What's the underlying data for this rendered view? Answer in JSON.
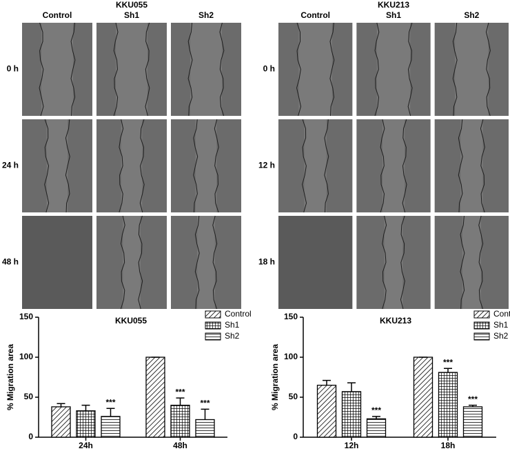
{
  "figure": {
    "panels": [
      {
        "title": "KKU055",
        "columns": [
          "Control",
          "Sh1",
          "Sh2"
        ],
        "rows": [
          "0 h",
          "24 h",
          "48 h"
        ]
      },
      {
        "title": "KKU213",
        "columns": [
          "Control",
          "Sh1",
          "Sh2"
        ],
        "rows": [
          "0 h",
          "12 h",
          "18 h"
        ]
      }
    ]
  },
  "chart_data": [
    {
      "type": "bar",
      "title": "KKU055",
      "y_label": "% Migration area",
      "categories": [
        "24h",
        "48h"
      ],
      "series": [
        {
          "name": "Control",
          "pattern": "diagonal",
          "color": "#000000",
          "values": [
            38,
            100
          ],
          "errors": [
            4,
            0
          ],
          "significance": [
            null,
            null
          ]
        },
        {
          "name": "Sh1",
          "pattern": "grid",
          "color": "#000000",
          "values": [
            33,
            40
          ],
          "errors": [
            7,
            9
          ],
          "significance": [
            null,
            "***"
          ]
        },
        {
          "name": "Sh2",
          "pattern": "horizontal",
          "color": "#000000",
          "values": [
            26,
            22
          ],
          "errors": [
            10,
            13
          ],
          "significance": [
            "***",
            "***"
          ]
        }
      ],
      "ylim": [
        0,
        150
      ],
      "yticks": [
        0,
        50,
        100,
        150
      ],
      "legend": "top-right"
    },
    {
      "type": "bar",
      "title": "KKU213",
      "y_label": "% Migration area",
      "categories": [
        "12h",
        "18h"
      ],
      "series": [
        {
          "name": "Control",
          "pattern": "diagonal",
          "color": "#000000",
          "values": [
            65,
            100
          ],
          "errors": [
            6,
            0
          ],
          "significance": [
            null,
            null
          ]
        },
        {
          "name": "Sh1",
          "pattern": "grid",
          "color": "#000000",
          "values": [
            57,
            81
          ],
          "errors": [
            11,
            5
          ],
          "significance": [
            null,
            "***"
          ]
        },
        {
          "name": "Sh2",
          "pattern": "horizontal",
          "color": "#000000",
          "values": [
            23,
            38
          ],
          "errors": [
            3,
            2
          ],
          "significance": [
            "***",
            "***"
          ]
        }
      ],
      "ylim": [
        0,
        150
      ],
      "yticks": [
        0,
        50,
        100,
        150
      ],
      "legend": "top-right"
    }
  ]
}
